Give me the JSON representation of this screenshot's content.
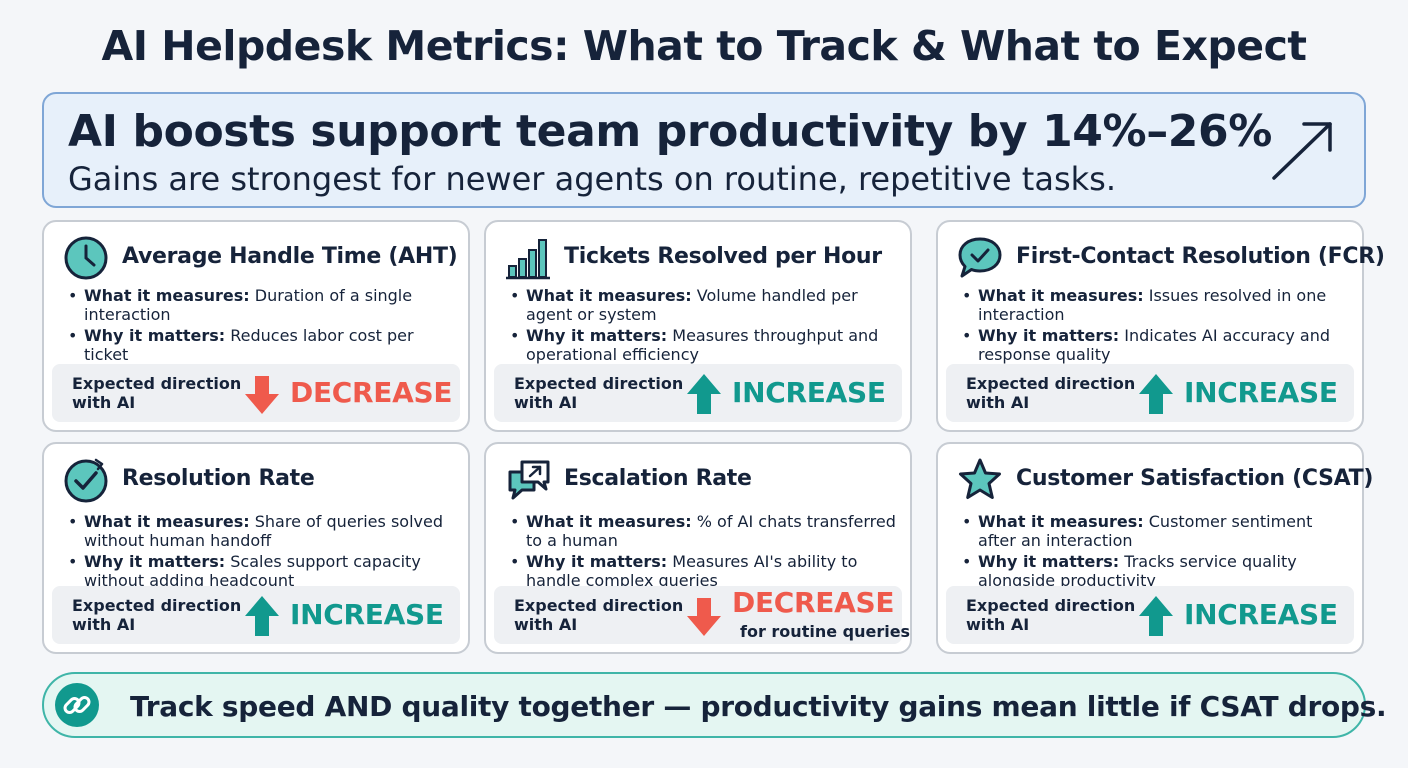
{
  "title": "AI Helpdesk Metrics: What to Track & What to Expect",
  "hero": {
    "headline": "AI boosts support team productivity by 14%–26%",
    "subline": "Gains are strongest for newer agents on routine, repetitive tasks.",
    "icon": "trend-up-arrow-icon"
  },
  "expected_label": "Expected direction with AI",
  "measures_label": "What it measures:",
  "matters_label": "Why it matters:",
  "colors": {
    "increase": "#11998e",
    "decrease": "#ef5a4c",
    "hero_border": "#7fa6d6",
    "footer_border": "#3fb5a8"
  },
  "cards": [
    {
      "title": "Average Handle Time (AHT)",
      "icon": "clock-icon",
      "measures": "Duration of a single interaction",
      "matters": "Reduces labor cost per ticket",
      "direction": "DECREASE",
      "note": ""
    },
    {
      "title": "Tickets Resolved per Hour",
      "icon": "bar-chart-icon",
      "measures": "Volume handled per agent or system",
      "matters": "Measures throughput and operational efficiency",
      "direction": "INCREASE",
      "note": ""
    },
    {
      "title": "First-Contact Resolution (FCR)",
      "icon": "chat-check-icon",
      "measures": "Issues resolved in one interaction",
      "matters": "Indicates AI accuracy and response quality",
      "direction": "INCREASE",
      "note": ""
    },
    {
      "title": "Resolution Rate",
      "icon": "circle-check-icon",
      "measures": "Share of queries solved without human handoff",
      "matters": "Scales support capacity without adding headcount",
      "direction": "INCREASE",
      "note": ""
    },
    {
      "title": "Escalation Rate",
      "icon": "chat-escalate-icon",
      "measures": "% of AI chats transferred to a human",
      "matters": "Measures AI's ability to handle complex queries",
      "direction": "DECREASE",
      "note": "for routine queries"
    },
    {
      "title": "Customer Satisfaction (CSAT)",
      "icon": "star-icon",
      "measures": "Customer sentiment after an interaction",
      "matters": "Tracks service quality alongside productivity",
      "direction": "INCREASE",
      "note": ""
    }
  ],
  "footer": {
    "text": "Track speed AND quality together — productivity gains mean little if CSAT drops.",
    "icon": "link-icon"
  }
}
